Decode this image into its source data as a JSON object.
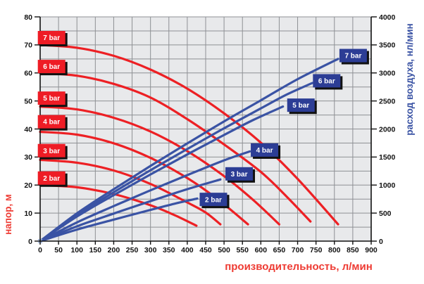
{
  "chart_data": {
    "type": "line",
    "title": "",
    "xlabel": "производительность, л/мин",
    "ylabel_left": "напор, м",
    "ylabel_right": "расход воздуха, нл/мин",
    "x_axis": {
      "min": 0,
      "max": 900,
      "label_step": 50,
      "grid_step": 50
    },
    "y_left_axis": {
      "min": 0,
      "max": 80,
      "label_step": 10,
      "grid_step": 5
    },
    "y_right_axis": {
      "min": 0,
      "max": 4000,
      "label_step": 500
    },
    "grid": true,
    "legend_position": "inline-labels",
    "colors": {
      "head_curve": "#ed2024",
      "head_label_bg": "#ee1c25",
      "air_curve": "#3a53a4",
      "air_label_bg": "#2c3d95",
      "label_text": "#ffffff",
      "label_shadow": "#111111",
      "plot_bg": "#e8e9eb",
      "grid_line": "#8e9094",
      "axis_line": "#111111",
      "tick_text": "#111111",
      "xlabel_color": "#ee3b33",
      "ylabel_left_color": "#ee3b33",
      "ylabel_right_color": "#3a53a4",
      "origin_marker": "#9db4dc"
    },
    "series": [
      {
        "id": "head-2bar",
        "group": "head",
        "name": "2 bar",
        "axis": "left",
        "points": [
          [
            0,
            20
          ],
          [
            100,
            19.2
          ],
          [
            200,
            16.8
          ],
          [
            300,
            12.8
          ],
          [
            370,
            9
          ],
          [
            425,
            5.5
          ]
        ],
        "label_at": [
          31,
          22.5
        ]
      },
      {
        "id": "head-3bar",
        "group": "head",
        "name": "3 bar",
        "axis": "left",
        "points": [
          [
            0,
            29
          ],
          [
            100,
            28
          ],
          [
            200,
            25.2
          ],
          [
            300,
            20.4
          ],
          [
            400,
            13.8
          ],
          [
            450,
            10.2
          ],
          [
            490,
            6
          ]
        ],
        "label_at": [
          31,
          32.3
        ]
      },
      {
        "id": "head-4bar",
        "group": "head",
        "name": "4 bar",
        "axis": "left",
        "points": [
          [
            0,
            39
          ],
          [
            100,
            38
          ],
          [
            200,
            34.9
          ],
          [
            300,
            29.7
          ],
          [
            400,
            22.5
          ],
          [
            480,
            15.2
          ],
          [
            565,
            6
          ]
        ],
        "label_at": [
          31,
          42.6
        ]
      },
      {
        "id": "head-5bar",
        "group": "head",
        "name": "5 bar",
        "axis": "left",
        "points": [
          [
            0,
            48
          ],
          [
            100,
            47
          ],
          [
            200,
            44
          ],
          [
            300,
            39.1
          ],
          [
            400,
            32.1
          ],
          [
            500,
            23.2
          ],
          [
            580,
            14.6
          ],
          [
            650,
            6
          ]
        ],
        "label_at": [
          31,
          51
        ]
      },
      {
        "id": "head-6bar",
        "group": "head",
        "name": "6 bar",
        "axis": "left",
        "points": [
          [
            0,
            60
          ],
          [
            100,
            59
          ],
          [
            200,
            56.1
          ],
          [
            300,
            51.2
          ],
          [
            400,
            43.5
          ],
          [
            500,
            34.5
          ],
          [
            600,
            24.7
          ],
          [
            670,
            15.9
          ],
          [
            735,
            7
          ]
        ],
        "label_at": [
          31,
          62.3
        ]
      },
      {
        "id": "head-7bar",
        "group": "head",
        "name": "7 bar",
        "axis": "left",
        "points": [
          [
            0,
            70
          ],
          [
            100,
            69
          ],
          [
            200,
            66.1
          ],
          [
            300,
            61.2
          ],
          [
            400,
            54.4
          ],
          [
            500,
            45.6
          ],
          [
            600,
            35.1
          ],
          [
            700,
            22.2
          ],
          [
            810,
            6
          ]
        ],
        "label_at": [
          31,
          72.6
        ]
      },
      {
        "id": "air-2bar",
        "group": "air",
        "name": "2 bar",
        "axis": "right",
        "points": [
          [
            0,
            0
          ],
          [
            100,
            206
          ],
          [
            200,
            384
          ],
          [
            300,
            557
          ],
          [
            370,
            675
          ],
          [
            427,
            760
          ]
        ],
        "label_at": [
          471,
          744
        ]
      },
      {
        "id": "air-3bar",
        "group": "air",
        "name": "3 bar",
        "axis": "right",
        "points": [
          [
            0,
            0
          ],
          [
            100,
            263
          ],
          [
            200,
            491
          ],
          [
            300,
            713
          ],
          [
            400,
            927
          ],
          [
            490,
            1100
          ]
        ],
        "label_at": [
          541,
          1200
        ]
      },
      {
        "id": "air-4bar",
        "group": "air",
        "name": "4 bar",
        "axis": "right",
        "points": [
          [
            0,
            0
          ],
          [
            100,
            334
          ],
          [
            200,
            624
          ],
          [
            300,
            906
          ],
          [
            400,
            1177
          ],
          [
            500,
            1441
          ],
          [
            570,
            1600
          ]
        ],
        "label_at": [
          610,
          1625
        ]
      },
      {
        "id": "air-5bar",
        "group": "air",
        "name": "5 bar",
        "axis": "right",
        "points": [
          [
            0,
            0
          ],
          [
            100,
            439
          ],
          [
            200,
            820
          ],
          [
            300,
            1190
          ],
          [
            400,
            1546
          ],
          [
            500,
            1893
          ],
          [
            580,
            2163
          ],
          [
            660,
            2400
          ]
        ],
        "label_at": [
          709,
          2425
        ]
      },
      {
        "id": "air-6bar",
        "group": "air",
        "name": "6 bar",
        "axis": "right",
        "points": [
          [
            0,
            0
          ],
          [
            100,
            467
          ],
          [
            200,
            872
          ],
          [
            300,
            1265
          ],
          [
            400,
            1643
          ],
          [
            500,
            2013
          ],
          [
            600,
            2368
          ],
          [
            670,
            2613
          ],
          [
            740,
            2820
          ]
        ],
        "label_at": [
          779,
          2860
        ]
      },
      {
        "id": "air-7bar",
        "group": "air",
        "name": "7 bar",
        "axis": "right",
        "points": [
          [
            0,
            0
          ],
          [
            100,
            495
          ],
          [
            200,
            925
          ],
          [
            300,
            1342
          ],
          [
            400,
            1743
          ],
          [
            500,
            2135
          ],
          [
            600,
            2512
          ],
          [
            700,
            2889
          ],
          [
            810,
            3250
          ]
        ],
        "label_at": [
          851,
          3310
        ]
      }
    ]
  }
}
